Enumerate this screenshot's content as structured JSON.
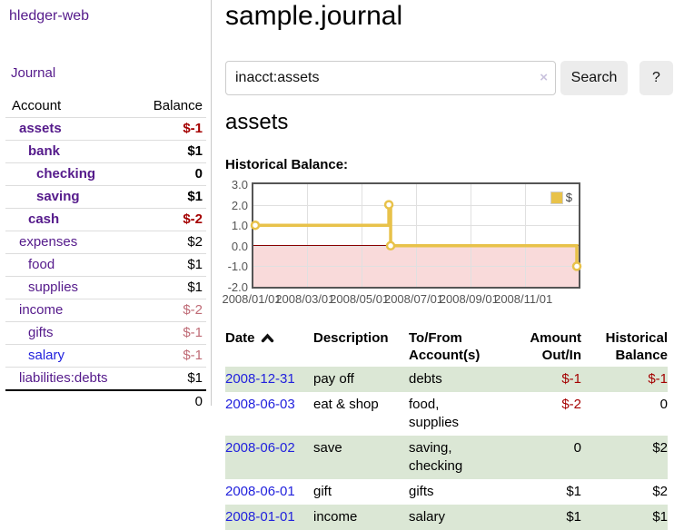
{
  "sidebar": {
    "brand": "hledger-web",
    "journal_link": "Journal",
    "table": {
      "account_header": "Account",
      "balance_header": "Balance",
      "rows": [
        {
          "name": "assets",
          "balance": "$-1"
        },
        {
          "name": "bank",
          "balance": "$1"
        },
        {
          "name": "checking",
          "balance": "0"
        },
        {
          "name": "saving",
          "balance": "$1"
        },
        {
          "name": "cash",
          "balance": "$-2"
        },
        {
          "name": "expenses",
          "balance": "$2"
        },
        {
          "name": "food",
          "balance": "$1"
        },
        {
          "name": "supplies",
          "balance": "$1"
        },
        {
          "name": "income",
          "balance": "$-2"
        },
        {
          "name": "gifts",
          "balance": "$-1"
        },
        {
          "name": "salary",
          "balance": "$-1"
        },
        {
          "name": "liabilities:debts",
          "balance": "$1"
        }
      ],
      "total": "0"
    }
  },
  "main": {
    "title": "sample.journal",
    "search": {
      "value": "inacct:assets",
      "clear_icon": "×",
      "search_button": "Search",
      "help_button": "?"
    },
    "account_heading": "assets",
    "chart_heading": "Historical Balance:",
    "register": {
      "headers": {
        "date": "Date",
        "description": "Description",
        "tofrom1": "To/From",
        "tofrom2": "Account(s)",
        "amount1": "Amount",
        "amount2": "Out/In",
        "balance1": "Historical",
        "balance2": "Balance"
      },
      "rows": [
        {
          "date": "2008-12-31",
          "description": "pay off",
          "accounts": "debts",
          "amount": "$-1",
          "balance": "$-1"
        },
        {
          "date": "2008-06-03",
          "description": "eat & shop",
          "accounts": "food, supplies",
          "amount": "$-2",
          "balance": "0"
        },
        {
          "date": "2008-06-02",
          "description": "save",
          "accounts": "saving, checking",
          "amount": "0",
          "balance": "$2"
        },
        {
          "date": "2008-06-01",
          "description": "gift",
          "accounts": "gifts",
          "amount": "$1",
          "balance": "$2"
        },
        {
          "date": "2008-01-01",
          "description": "income",
          "accounts": "salary",
          "amount": "$1",
          "balance": "$1"
        }
      ]
    }
  },
  "chart_data": {
    "type": "line",
    "title": "Historical Balance:",
    "x_range": [
      "2008-01-01",
      "2008-12-31"
    ],
    "ylim": [
      -2,
      3
    ],
    "y_ticks": [
      3.0,
      2.0,
      1.0,
      0.0,
      -1.0,
      -2.0
    ],
    "x_ticks": [
      "2008/01/01",
      "2008/03/01",
      "2008/05/01",
      "2008/07/01",
      "2008/09/01",
      "2008/11/01"
    ],
    "series": [
      {
        "name": "$",
        "color": "#e8c24a",
        "step": true,
        "points": [
          {
            "x": "2008-01-01",
            "y": 1
          },
          {
            "x": "2008-06-01",
            "y": 2
          },
          {
            "x": "2008-06-03",
            "y": 0
          },
          {
            "x": "2008-12-31",
            "y": -1
          }
        ]
      }
    ],
    "legend": {
      "label": "$",
      "position": "top-right"
    },
    "grid": true,
    "colors": {
      "negative_region": "#f9dada",
      "zero_line": "#8b0000",
      "grid": "#e0e0e0",
      "border": "#555555",
      "axis_labels": "#545454"
    }
  }
}
